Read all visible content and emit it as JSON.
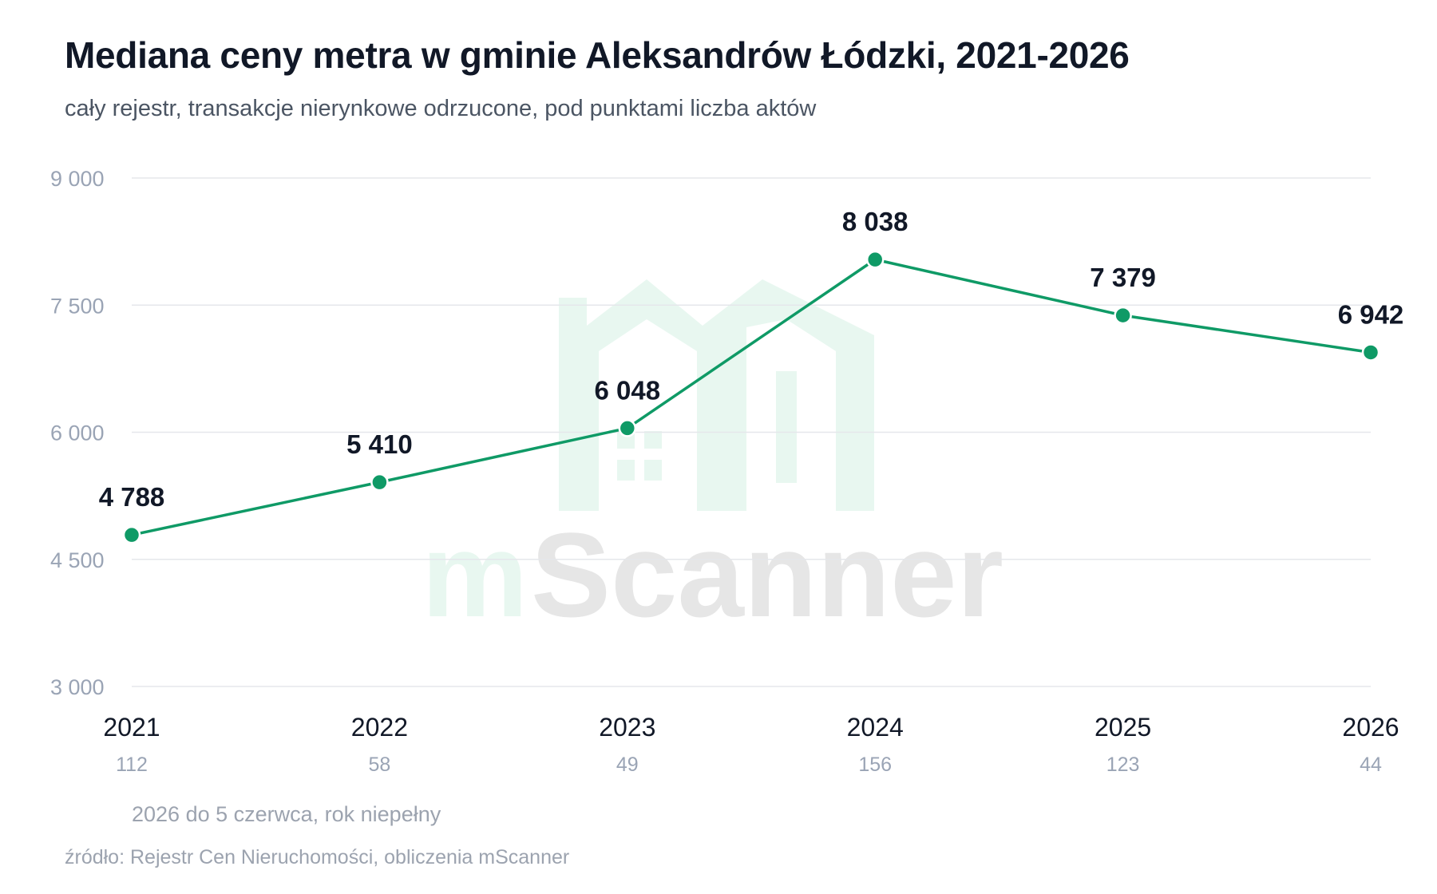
{
  "title": "Mediana ceny metra w gminie Aleksandrów Łódzki, 2021-2026",
  "subtitle": "cały rejestr, transakcje nierynkowe odrzucone, pod punktami liczba aktów",
  "note": "2026 do 5 czerwca, rok niepełny",
  "source": "źródło: Rejestr Cen Nieruchomości, obliczenia mScanner",
  "watermark": {
    "prefix": "m",
    "rest": "Scanner"
  },
  "colors": {
    "line": "#0f9a66",
    "grid": "#e5e7eb",
    "watermark_green": "#e8f7f0",
    "watermark_gray": "#e6e6e6"
  },
  "chart_data": {
    "type": "line",
    "categories": [
      "2021",
      "2022",
      "2023",
      "2024",
      "2025",
      "2026"
    ],
    "values": [
      4788,
      5410,
      6048,
      8038,
      7379,
      6942
    ],
    "value_labels": [
      "4 788",
      "5 410",
      "6 048",
      "8 038",
      "7 379",
      "6 942"
    ],
    "counts": [
      "112",
      "58",
      "49",
      "156",
      "123",
      "44"
    ],
    "ylim": [
      3000,
      9000
    ],
    "yticks": [
      3000,
      4500,
      6000,
      7500,
      9000
    ],
    "ytick_labels": [
      "3 000",
      "4 500",
      "6 000",
      "7 500",
      "9 000"
    ],
    "grid": true
  }
}
